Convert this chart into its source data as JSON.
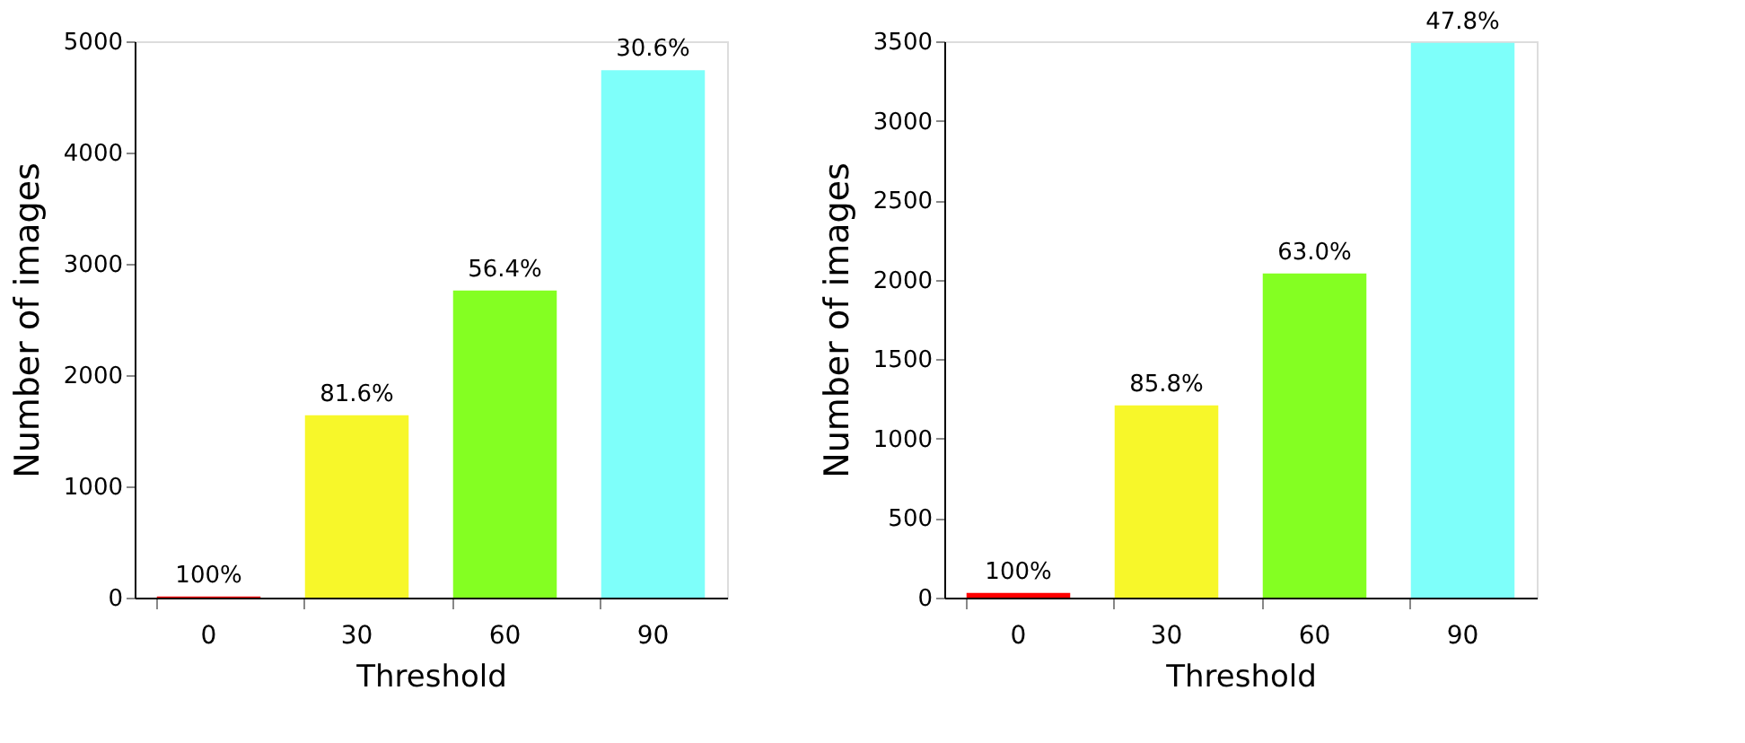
{
  "chart_data": [
    {
      "type": "bar",
      "categories": [
        "0",
        "30",
        "60",
        "90"
      ],
      "values": [
        10,
        1640,
        2760,
        4740
      ],
      "colors": [
        "#ff0000",
        "#f7f72a",
        "#84ff22",
        "#7efffa"
      ],
      "annotations": [
        {
          "text": "100%",
          "x": "0",
          "y": 10
        },
        {
          "text": "81.6%",
          "x": "30",
          "y": 1640
        },
        {
          "text": "56.4%",
          "x": "60",
          "y": 2760
        },
        {
          "text": "30.6%",
          "x": "90",
          "y": 4740
        }
      ],
      "xlabel": "Threshold",
      "ylabel": "Number of images",
      "ylim": [
        0,
        5000
      ],
      "yticks": [
        0,
        1000,
        2000,
        3000,
        4000,
        5000
      ],
      "grid": false
    },
    {
      "type": "bar",
      "categories": [
        "0",
        "30",
        "60",
        "90"
      ],
      "values": [
        30,
        1210,
        2040,
        3490
      ],
      "colors": [
        "#ff0000",
        "#f7f72a",
        "#84ff22",
        "#7efffa"
      ],
      "annotations": [
        {
          "text": "100%",
          "x": "0",
          "y": 30
        },
        {
          "text": "85.8%",
          "x": "30",
          "y": 1210
        },
        {
          "text": "63.0%",
          "x": "60",
          "y": 2040
        },
        {
          "text": "47.8%",
          "x": "90",
          "y": 3490
        }
      ],
      "xlabel": "Threshold",
      "ylabel": "Number of images",
      "ylim": [
        0,
        3500
      ],
      "yticks": [
        0,
        500,
        1000,
        1500,
        2000,
        2500,
        3000,
        3500
      ],
      "grid": false
    }
  ]
}
